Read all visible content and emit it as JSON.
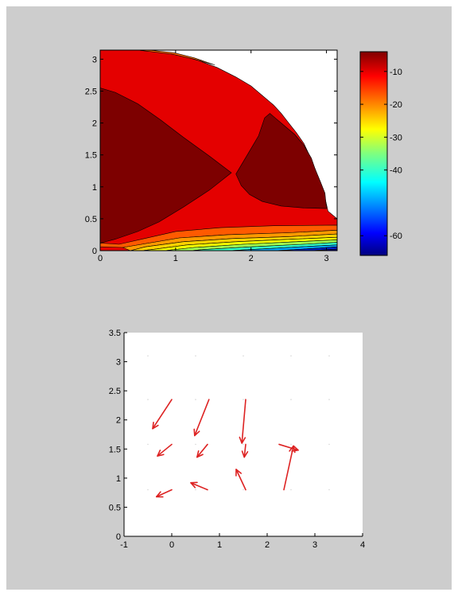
{
  "figure": {
    "background": "#cdcdcd"
  },
  "chart_data": [
    {
      "type": "contour",
      "title": "",
      "xlabel": "",
      "ylabel": "",
      "xlim": [
        0,
        3.1416
      ],
      "ylim": [
        0,
        3.1416
      ],
      "x_ticks": [
        "0",
        "1",
        "2",
        "3"
      ],
      "y_ticks": [
        "0",
        "0.5",
        "1",
        "1.5",
        "2",
        "2.5",
        "3"
      ],
      "x_tick_values": [
        0,
        1,
        2,
        3
      ],
      "y_tick_values": [
        0,
        0.5,
        1,
        1.5,
        2,
        2.5,
        3
      ],
      "colormap": "jet",
      "grid": false,
      "regions": [
        {
          "name": "",
          "color": "#e40000",
          "points": [
            [
              0,
              0
            ],
            [
              3.1416,
              0
            ],
            [
              3.1416,
              0.5
            ],
            [
              3.02,
              0.62
            ],
            [
              2.98,
              0.83
            ],
            [
              2.92,
              1.05
            ],
            [
              2.85,
              1.28
            ],
            [
              2.78,
              1.48
            ],
            [
              2.7,
              1.68
            ],
            [
              2.6,
              1.85
            ],
            [
              2.5,
              2.0
            ],
            [
              2.4,
              2.15
            ],
            [
              2.3,
              2.28
            ],
            [
              2.16,
              2.42
            ],
            [
              2.0,
              2.58
            ],
            [
              1.8,
              2.72
            ],
            [
              1.55,
              2.87
            ],
            [
              1.3,
              2.98
            ],
            [
              1.05,
              3.06
            ],
            [
              0.85,
              3.1
            ],
            [
              0.5,
              3.1416
            ],
            [
              0,
              3.1416
            ]
          ]
        },
        {
          "name": "",
          "color": "#7d0000",
          "points": [
            [
              0,
              2.55
            ],
            [
              0.2,
              2.48
            ],
            [
              0.5,
              2.3
            ],
            [
              0.8,
              2.05
            ],
            [
              1.1,
              1.78
            ],
            [
              1.45,
              1.48
            ],
            [
              1.74,
              1.22
            ],
            [
              1.45,
              0.95
            ],
            [
              1.1,
              0.68
            ],
            [
              0.78,
              0.45
            ],
            [
              0.5,
              0.3
            ],
            [
              0.2,
              0.18
            ],
            [
              0,
              0.12
            ]
          ]
        },
        {
          "name": "",
          "color": "#7d0000",
          "points": [
            [
              1.8,
              1.2
            ],
            [
              1.95,
              1.5
            ],
            [
              2.1,
              1.8
            ],
            [
              2.18,
              2.08
            ],
            [
              2.25,
              2.15
            ],
            [
              2.32,
              2.08
            ],
            [
              2.45,
              1.95
            ],
            [
              2.58,
              1.82
            ],
            [
              2.7,
              1.65
            ],
            [
              2.8,
              1.45
            ],
            [
              2.85,
              1.28
            ],
            [
              2.92,
              1.08
            ],
            [
              2.98,
              0.9
            ],
            [
              3.0,
              0.66
            ],
            [
              2.7,
              0.67
            ],
            [
              2.4,
              0.7
            ],
            [
              2.15,
              0.77
            ],
            [
              1.98,
              0.88
            ],
            [
              1.87,
              1.02
            ]
          ]
        },
        {
          "name": "",
          "color": "#ff6a00",
          "points": [
            [
              0.5,
              3.1416
            ],
            [
              0.95,
              3.08
            ],
            [
              1.25,
              3.0
            ],
            [
              1.45,
              2.93
            ],
            [
              1.52,
              2.91
            ],
            [
              1.25,
              3.02
            ],
            [
              0.98,
              3.1
            ],
            [
              0.65,
              3.1416
            ]
          ]
        },
        {
          "name": "",
          "color": "#ff5a00",
          "points": [
            [
              0,
              0.12
            ],
            [
              0.25,
              0.1
            ],
            [
              0.55,
              0.18
            ],
            [
              1.0,
              0.3
            ],
            [
              1.6,
              0.36
            ],
            [
              2.3,
              0.39
            ],
            [
              3.1416,
              0.4
            ],
            [
              3.1416,
              0.32
            ],
            [
              2.5,
              0.28
            ],
            [
              1.7,
              0.25
            ],
            [
              1.05,
              0.2
            ],
            [
              0.55,
              0.1
            ],
            [
              0.3,
              0.05
            ],
            [
              0,
              0.06
            ]
          ]
        },
        {
          "name": "",
          "color": "#ff9a00",
          "points": [
            [
              0.3,
              0.05
            ],
            [
              0.55,
              0.1
            ],
            [
              1.05,
              0.2
            ],
            [
              1.7,
              0.25
            ],
            [
              2.5,
              0.28
            ],
            [
              3.1416,
              0.32
            ],
            [
              3.1416,
              0.26
            ],
            [
              2.5,
              0.22
            ],
            [
              1.75,
              0.19
            ],
            [
              1.1,
              0.14
            ],
            [
              0.6,
              0.06
            ],
            [
              0.4,
              0.0
            ]
          ]
        },
        {
          "name": "",
          "color": "#ffd200",
          "points": [
            [
              0.4,
              0.0
            ],
            [
              0.6,
              0.06
            ],
            [
              1.1,
              0.14
            ],
            [
              1.75,
              0.19
            ],
            [
              2.5,
              0.22
            ],
            [
              3.1416,
              0.26
            ],
            [
              3.1416,
              0.21
            ],
            [
              2.55,
              0.18
            ],
            [
              1.8,
              0.14
            ],
            [
              1.15,
              0.09
            ],
            [
              0.7,
              0.02
            ],
            [
              0.55,
              0
            ]
          ]
        },
        {
          "name": "",
          "color": "#f4ff00",
          "points": [
            [
              0.55,
              0
            ],
            [
              0.7,
              0.02
            ],
            [
              1.15,
              0.09
            ],
            [
              1.8,
              0.14
            ],
            [
              2.55,
              0.18
            ],
            [
              3.1416,
              0.21
            ],
            [
              3.1416,
              0.17
            ],
            [
              2.6,
              0.14
            ],
            [
              1.9,
              0.1
            ],
            [
              1.25,
              0.05
            ],
            [
              0.85,
              0
            ]
          ]
        },
        {
          "name": "",
          "color": "#a0ff50",
          "points": [
            [
              0.85,
              0
            ],
            [
              1.25,
              0.05
            ],
            [
              1.9,
              0.1
            ],
            [
              2.6,
              0.14
            ],
            [
              3.1416,
              0.17
            ],
            [
              3.1416,
              0.13
            ],
            [
              2.7,
              0.1
            ],
            [
              2.0,
              0.06
            ],
            [
              1.4,
              0.02
            ],
            [
              1.2,
              0
            ]
          ]
        },
        {
          "name": "",
          "color": "#32ffc8",
          "points": [
            [
              1.2,
              0
            ],
            [
              1.4,
              0.02
            ],
            [
              2.0,
              0.06
            ],
            [
              2.7,
              0.1
            ],
            [
              3.1416,
              0.13
            ],
            [
              3.1416,
              0.09
            ],
            [
              2.8,
              0.07
            ],
            [
              2.2,
              0.03
            ],
            [
              1.7,
              0
            ]
          ]
        },
        {
          "name": "",
          "color": "#00a8ff",
          "points": [
            [
              1.7,
              0
            ],
            [
              2.2,
              0.03
            ],
            [
              2.8,
              0.07
            ],
            [
              3.1416,
              0.09
            ],
            [
              3.1416,
              0.06
            ],
            [
              2.9,
              0.04
            ],
            [
              2.5,
              0.01
            ],
            [
              2.3,
              0
            ]
          ]
        },
        {
          "name": "",
          "color": "#0020c8",
          "points": [
            [
              2.3,
              0
            ],
            [
              2.5,
              0.01
            ],
            [
              2.9,
              0.04
            ],
            [
              3.1416,
              0.06
            ],
            [
              3.1416,
              0.025
            ],
            [
              3.0,
              0.015
            ],
            [
              2.8,
              0
            ]
          ]
        },
        {
          "name": "",
          "color": "#000080",
          "points": [
            [
              2.8,
              0
            ],
            [
              3.0,
              0.015
            ],
            [
              3.1416,
              0.025
            ],
            [
              3.1416,
              0
            ]
          ]
        }
      ],
      "colorbar": {
        "range": [
          -66,
          -4
        ],
        "ticks": [
          "-10",
          "-20",
          "-30",
          "-40",
          "-60"
        ],
        "tick_values": [
          -10,
          -20,
          -30,
          -40,
          -60
        ]
      }
    },
    {
      "type": "quiver",
      "title": "",
      "xlabel": "",
      "ylabel": "",
      "xlim": [
        -1,
        4
      ],
      "ylim": [
        0,
        3.5
      ],
      "x_ticks": [
        "-1",
        "0",
        "1",
        "2",
        "3",
        "4"
      ],
      "y_ticks": [
        "0",
        "0.5",
        "1",
        "1.5",
        "2",
        "2.5",
        "3",
        "3.5"
      ],
      "x_tick_values": [
        -1,
        0,
        1,
        2,
        3,
        4
      ],
      "y_tick_values": [
        0,
        0.5,
        1,
        1.5,
        2,
        2.5,
        3,
        3.5
      ],
      "grid": false,
      "arrow_color": "#dd2222",
      "arrows": [
        {
          "x": 0.0,
          "y": 2.35,
          "u": -0.4,
          "v": -0.5
        },
        {
          "x": 0.78,
          "y": 2.35,
          "u": -0.3,
          "v": -0.62
        },
        {
          "x": 1.55,
          "y": 2.35,
          "u": -0.08,
          "v": -0.75
        },
        {
          "x": 0.0,
          "y": 1.58,
          "u": -0.3,
          "v": -0.2
        },
        {
          "x": 0.75,
          "y": 1.58,
          "u": -0.22,
          "v": -0.22
        },
        {
          "x": 1.55,
          "y": 1.58,
          "u": -0.03,
          "v": -0.22
        },
        {
          "x": 2.35,
          "y": 0.8,
          "u": 0.2,
          "v": 0.75
        },
        {
          "x": 2.25,
          "y": 1.58,
          "u": 0.4,
          "v": -0.1
        },
        {
          "x": 0.0,
          "y": 0.8,
          "u": -0.32,
          "v": -0.12
        },
        {
          "x": 0.75,
          "y": 0.8,
          "u": -0.35,
          "v": 0.12
        },
        {
          "x": 1.55,
          "y": 0.8,
          "u": -0.2,
          "v": 0.35
        }
      ],
      "grid_dots": [
        [
          -0.5,
          0.8
        ],
        [
          0.5,
          0.8
        ],
        [
          1.5,
          0.8
        ],
        [
          2.5,
          0.8
        ],
        [
          3.3,
          0.8
        ],
        [
          -0.5,
          1.58
        ],
        [
          0.5,
          1.58
        ],
        [
          1.5,
          1.58
        ],
        [
          2.5,
          1.58
        ],
        [
          3.3,
          1.58
        ],
        [
          -0.5,
          2.35
        ],
        [
          0.5,
          2.35
        ],
        [
          1.5,
          2.35
        ],
        [
          2.5,
          2.35
        ],
        [
          3.3,
          2.35
        ],
        [
          -0.5,
          3.1
        ],
        [
          0.5,
          3.1
        ],
        [
          1.5,
          3.1
        ],
        [
          2.5,
          3.1
        ],
        [
          3.3,
          3.1
        ]
      ]
    }
  ]
}
